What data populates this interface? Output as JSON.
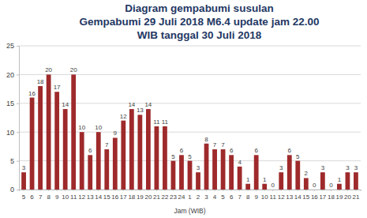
{
  "chart_data": {
    "type": "bar",
    "title": "Diagram gempabumi susulan\nGempabumi 29 Juli 2018 M6.4 update jam 22.00\nWIB tanggal 30 Juli 2018",
    "x_label": "Jam (WIB)",
    "categories": [
      "5",
      "6",
      "7",
      "8",
      "9",
      "10",
      "11",
      "12",
      "13",
      "14",
      "15",
      "16",
      "17",
      "18",
      "19",
      "20",
      "21",
      "22",
      "23",
      "24",
      "1",
      "2",
      "3",
      "4",
      "5",
      "6",
      "7",
      "8",
      "9",
      "10",
      "11",
      "12",
      "13",
      "14",
      "15",
      "16",
      "17",
      "18",
      "19",
      "20",
      "21"
    ],
    "values": [
      3,
      16,
      18,
      20,
      17,
      14,
      20,
      10,
      6,
      10,
      7,
      9,
      12,
      14,
      13,
      14,
      11,
      11,
      5,
      6,
      5,
      3,
      8,
      7,
      7,
      6,
      4,
      1,
      6,
      1,
      0,
      3,
      6,
      5,
      2,
      0,
      3,
      0,
      1,
      3,
      3
    ],
    "color": "#9e2a2b",
    "ylim": [
      0,
      25
    ],
    "yticks": [
      0,
      5,
      10,
      15,
      20,
      25
    ],
    "grid": true,
    "data_labels": true
  }
}
